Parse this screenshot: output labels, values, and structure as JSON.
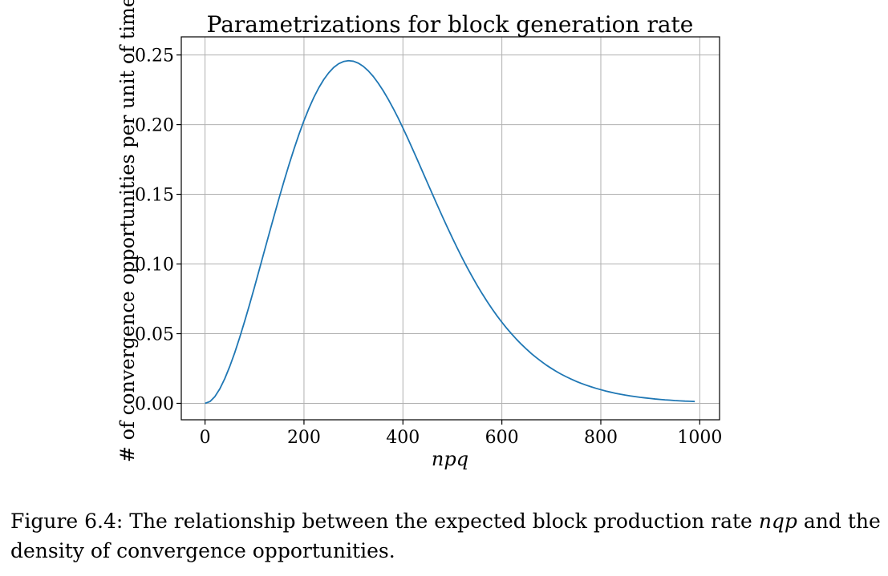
{
  "chart_data": {
    "type": "line",
    "title": "Parametrizations for block generation rate",
    "xlabel": "npq",
    "ylabel": "# of convergence opportunities per unit of time",
    "xlim": [
      -48,
      1040
    ],
    "ylim": [
      -0.0118,
      0.263
    ],
    "xticks": [
      0,
      200,
      400,
      600,
      800,
      1000
    ],
    "xtick_labels": [
      "0",
      "200",
      "400",
      "600",
      "800",
      "1000"
    ],
    "yticks": [
      0.0,
      0.05,
      0.1,
      0.15,
      0.2,
      0.25
    ],
    "ytick_labels": [
      "0.00",
      "0.05",
      "0.10",
      "0.15",
      "0.20",
      "0.25"
    ],
    "grid": true,
    "series": [
      {
        "color": "#1f77b4",
        "x": [
          0,
          10,
          20,
          30,
          40,
          50,
          60,
          70,
          80,
          90,
          100,
          110,
          120,
          130,
          140,
          150,
          160,
          170,
          180,
          190,
          200,
          210,
          220,
          230,
          240,
          250,
          260,
          270,
          280,
          290,
          300,
          310,
          320,
          330,
          340,
          350,
          360,
          370,
          380,
          390,
          400,
          410,
          420,
          430,
          440,
          450,
          460,
          470,
          480,
          490,
          500,
          510,
          520,
          530,
          540,
          550,
          560,
          570,
          580,
          590,
          600,
          610,
          620,
          630,
          640,
          650,
          660,
          670,
          680,
          690,
          700,
          710,
          720,
          730,
          740,
          750,
          760,
          770,
          780,
          790,
          800,
          810,
          820,
          830,
          840,
          850,
          860,
          870,
          880,
          890,
          900,
          910,
          920,
          930,
          940,
          950,
          960,
          970,
          980,
          990
        ],
        "y": [
          0.0,
          0.0013,
          0.0049,
          0.0105,
          0.0178,
          0.0265,
          0.0363,
          0.0472,
          0.0588,
          0.0709,
          0.0835,
          0.0964,
          0.1094,
          0.1223,
          0.1351,
          0.1477,
          0.1599,
          0.1716,
          0.1827,
          0.1932,
          0.2029,
          0.2117,
          0.2196,
          0.2265,
          0.2324,
          0.2372,
          0.241,
          0.2437,
          0.2453,
          0.2459,
          0.2455,
          0.2441,
          0.2418,
          0.2386,
          0.2346,
          0.2298,
          0.2244,
          0.2184,
          0.2119,
          0.205,
          0.1976,
          0.19,
          0.1821,
          0.1741,
          0.166,
          0.1579,
          0.1498,
          0.1418,
          0.1339,
          0.1262,
          0.1186,
          0.1113,
          0.1042,
          0.0974,
          0.0909,
          0.0847,
          0.0788,
          0.0732,
          0.0679,
          0.0629,
          0.0582,
          0.0538,
          0.0497,
          0.0458,
          0.0422,
          0.0388,
          0.0356,
          0.0327,
          0.03,
          0.0274,
          0.0251,
          0.0229,
          0.0209,
          0.0191,
          0.0174,
          0.0158,
          0.0144,
          0.0131,
          0.0119,
          0.0108,
          0.0098,
          0.0088,
          0.008,
          0.0072,
          0.0065,
          0.0059,
          0.0053,
          0.0048,
          0.0043,
          0.0039,
          0.0035,
          0.0031,
          0.0028,
          0.0025,
          0.0023,
          0.002,
          0.0018,
          0.0016,
          0.0015,
          0.0013
        ]
      }
    ]
  },
  "caption": {
    "prefix": "Figure 6.4:  The relationship between the expected block production rate ",
    "math": "nqp",
    "suffix": " and the density of convergence opportunities."
  }
}
